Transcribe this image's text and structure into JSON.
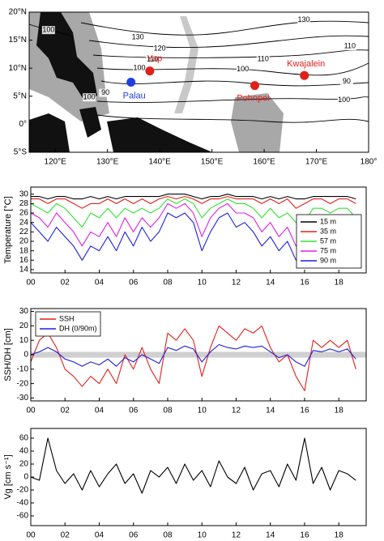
{
  "chart_data": [
    {
      "type": "map",
      "xlim": [
        115,
        180
      ],
      "ylim": [
        -5,
        20
      ],
      "xticks": [
        {
          "value": 120,
          "label": "120°E"
        },
        {
          "value": 130,
          "label": "130°E"
        },
        {
          "value": 140,
          "label": "140°E"
        },
        {
          "value": 150,
          "label": "150°E"
        },
        {
          "value": 160,
          "label": "160°E"
        },
        {
          "value": 170,
          "label": "170°E"
        },
        {
          "value": 180,
          "label": "180°"
        }
      ],
      "yticks": [
        {
          "value": -5,
          "label": "5°S"
        },
        {
          "value": 0,
          "label": "0°"
        },
        {
          "value": 5,
          "label": "5°N"
        },
        {
          "value": 10,
          "label": "10°N"
        },
        {
          "value": 15,
          "label": "15°N"
        },
        {
          "value": 20,
          "label": "20°N"
        }
      ],
      "points": [
        {
          "name": "Palau",
          "lon": 134.5,
          "lat": 7.5,
          "color": "#1f3fe0"
        },
        {
          "name": "Yap",
          "lon": 138.1,
          "lat": 9.5,
          "color": "#e0201b"
        },
        {
          "name": "Pohnpei",
          "lon": 158.2,
          "lat": 6.9,
          "color": "#e0201b"
        },
        {
          "name": "Kwajalein",
          "lon": 167.7,
          "lat": 8.7,
          "color": "#e0201b"
        }
      ],
      "contour_labels": [
        {
          "text": "130",
          "lon": 167.6,
          "lat": 18.6
        },
        {
          "text": "100",
          "lon": 118.7,
          "lat": 16.8
        },
        {
          "text": "130",
          "lon": 135.8,
          "lat": 15.5
        },
        {
          "text": "120",
          "lon": 140,
          "lat": 13.5
        },
        {
          "text": "110",
          "lon": 138.6,
          "lat": 11.5
        },
        {
          "text": "100",
          "lon": 136.1,
          "lat": 10
        },
        {
          "text": "110",
          "lon": 176.4,
          "lat": 13.9
        },
        {
          "text": "110",
          "lon": 159.8,
          "lat": 11.6
        },
        {
          "text": "100",
          "lon": 155.9,
          "lat": 9.8
        },
        {
          "text": "90",
          "lon": 175.8,
          "lat": 7.6
        },
        {
          "text": "100",
          "lon": 175.3,
          "lat": 4.3
        },
        {
          "text": "100",
          "lon": 126.5,
          "lat": 4.8
        },
        {
          "text": "90",
          "lon": 129.6,
          "lat": 5.6
        }
      ]
    },
    {
      "type": "line",
      "ylabel": "Temperature [°C]",
      "x": [
        0,
        0.5,
        1,
        1.5,
        2,
        2.5,
        3,
        3.5,
        4,
        4.5,
        5,
        5.5,
        6,
        6.5,
        7,
        7.5,
        8,
        8.5,
        9,
        9.5,
        10,
        10.5,
        11,
        11.5,
        12,
        12.5,
        13,
        13.5,
        14,
        14.5,
        15,
        15.5,
        16,
        16.5,
        17,
        17.5,
        18,
        18.5,
        19
      ],
      "xlim": [
        0,
        19.6
      ],
      "xticks": [
        {
          "value": 0,
          "label": "00"
        },
        {
          "value": 2,
          "label": "02"
        },
        {
          "value": 4,
          "label": "04"
        },
        {
          "value": 6,
          "label": "06"
        },
        {
          "value": 8,
          "label": "08"
        },
        {
          "value": 10,
          "label": "10"
        },
        {
          "value": 12,
          "label": "12"
        },
        {
          "value": 14,
          "label": "14"
        },
        {
          "value": 16,
          "label": "16"
        },
        {
          "value": 18,
          "label": "18"
        }
      ],
      "ylim": [
        13.3,
        31.5
      ],
      "yticks": [
        14,
        16,
        18,
        20,
        22,
        24,
        26,
        28,
        30
      ],
      "legend": "lower right",
      "series": [
        {
          "name": "15 m",
          "color": "#000000",
          "values": [
            29.5,
            29.5,
            29,
            29.5,
            29.5,
            29,
            29,
            29.5,
            29,
            29.5,
            29,
            29.5,
            29.5,
            29.5,
            29.5,
            29.5,
            30,
            30,
            30,
            29.5,
            29,
            29.5,
            29.5,
            30,
            29.5,
            29.5,
            29.5,
            29,
            29.5,
            29,
            29.5,
            29,
            29,
            29.5,
            29.5,
            29.5,
            29.5,
            29.5,
            29
          ]
        },
        {
          "name": "35 m",
          "color": "#e0201b",
          "values": [
            29,
            29,
            28,
            29,
            29,
            28,
            27,
            28,
            28,
            29,
            28,
            29,
            28,
            29,
            28,
            29,
            29.5,
            29,
            29.5,
            29,
            28,
            29,
            29,
            29.5,
            29,
            29,
            29,
            28,
            29,
            28,
            29,
            27,
            28,
            29,
            29,
            28,
            29,
            29,
            28
          ]
        },
        {
          "name": "57 m",
          "color": "#33e033",
          "values": [
            28,
            27,
            26,
            28,
            27,
            25,
            23,
            26,
            25,
            27,
            25,
            27,
            26,
            27,
            26,
            27,
            29,
            28,
            29,
            28,
            25,
            27,
            28,
            29,
            28,
            28,
            27,
            25,
            27,
            25,
            26,
            24,
            24,
            27,
            27,
            26,
            27,
            27,
            25
          ]
        },
        {
          "name": "75 m",
          "color": "#e020e0",
          "values": [
            26,
            25,
            23,
            26,
            24,
            22,
            19,
            22,
            21,
            24,
            21,
            25,
            22,
            25,
            23,
            25,
            28,
            27,
            28,
            26,
            21,
            25,
            27,
            28,
            26,
            26,
            25,
            22,
            24,
            21,
            23,
            19,
            20,
            24,
            25,
            23,
            25,
            24,
            20
          ]
        },
        {
          "name": "90 m",
          "color": "#1f1fe0",
          "values": [
            24,
            22,
            20,
            23,
            21,
            19,
            16,
            19,
            18,
            21,
            18,
            22,
            19,
            23,
            20,
            22,
            26,
            25,
            26,
            24,
            18,
            22,
            25,
            26,
            23,
            24,
            22,
            19,
            21,
            18,
            20,
            16,
            17,
            21,
            22,
            20,
            22,
            21,
            17
          ]
        }
      ]
    },
    {
      "type": "line",
      "ylabel": "SSH/DH [cm]",
      "x": [
        0,
        0.5,
        1,
        1.5,
        2,
        2.5,
        3,
        3.5,
        4,
        4.5,
        5,
        5.5,
        6,
        6.5,
        7,
        7.5,
        8,
        8.5,
        9,
        9.5,
        10,
        10.5,
        11,
        11.5,
        12,
        12.5,
        13,
        13.5,
        14,
        14.5,
        15,
        15.5,
        16,
        16.5,
        17,
        17.5,
        18,
        18.5,
        19
      ],
      "xlim": [
        0,
        19.6
      ],
      "xticks": [
        {
          "value": 0,
          "label": "00"
        },
        {
          "value": 2,
          "label": "02"
        },
        {
          "value": 4,
          "label": "04"
        },
        {
          "value": 6,
          "label": "06"
        },
        {
          "value": 8,
          "label": "08"
        },
        {
          "value": 10,
          "label": "10"
        },
        {
          "value": 12,
          "label": "12"
        },
        {
          "value": 14,
          "label": "14"
        },
        {
          "value": 16,
          "label": "16"
        },
        {
          "value": 18,
          "label": "18"
        }
      ],
      "ylim": [
        -32,
        32
      ],
      "yticks": [
        -30,
        -20,
        -10,
        0,
        10,
        20,
        30
      ],
      "shade": [
        -2,
        2
      ],
      "legend": "upper left",
      "series": [
        {
          "name": "SSH",
          "color": "#e0201b",
          "values": [
            -5,
            10,
            15,
            5,
            -10,
            -15,
            -22,
            -15,
            -20,
            -10,
            -20,
            0,
            -10,
            5,
            -10,
            -20,
            15,
            10,
            18,
            10,
            -15,
            5,
            20,
            15,
            10,
            18,
            15,
            20,
            5,
            -5,
            0,
            -15,
            -25,
            10,
            5,
            10,
            5,
            10,
            -10
          ]
        },
        {
          "name": "DH (0/90m)",
          "color": "#1f1fe0",
          "values": [
            0,
            2,
            5,
            2,
            -3,
            -5,
            -8,
            -5,
            -7,
            -3,
            -8,
            -2,
            -5,
            0,
            -3,
            -6,
            5,
            3,
            6,
            4,
            -5,
            2,
            7,
            5,
            4,
            6,
            5,
            6,
            2,
            -2,
            0,
            -5,
            -8,
            3,
            2,
            4,
            2,
            4,
            -3
          ]
        }
      ]
    },
    {
      "type": "line",
      "ylabel": "Vg [cm s⁻¹]",
      "x": [
        0,
        0.5,
        1,
        1.5,
        2,
        2.5,
        3,
        3.5,
        4,
        4.5,
        5,
        5.5,
        6,
        6.5,
        7,
        7.5,
        8,
        8.5,
        9,
        9.5,
        10,
        10.5,
        11,
        11.5,
        12,
        12.5,
        13,
        13.5,
        14,
        14.5,
        15,
        15.5,
        16,
        16.5,
        17,
        17.5,
        18,
        18.5,
        19
      ],
      "xlim": [
        0,
        19.6
      ],
      "xticks": [
        {
          "value": 0,
          "label": "00"
        },
        {
          "value": 2,
          "label": "02"
        },
        {
          "value": 4,
          "label": "04"
        },
        {
          "value": 6,
          "label": "06"
        },
        {
          "value": 8,
          "label": "08"
        },
        {
          "value": 10,
          "label": "10"
        },
        {
          "value": 12,
          "label": "12"
        },
        {
          "value": 14,
          "label": "14"
        },
        {
          "value": 16,
          "label": "16"
        },
        {
          "value": 18,
          "label": "18"
        }
      ],
      "ylim": [
        -75,
        75
      ],
      "yticks": [
        -60,
        -40,
        -20,
        0,
        20,
        40,
        60
      ],
      "series": [
        {
          "color": "#000000",
          "values": [
            0,
            -5,
            60,
            10,
            -10,
            5,
            -20,
            10,
            -15,
            5,
            20,
            -10,
            5,
            -25,
            10,
            0,
            15,
            -10,
            20,
            -5,
            10,
            -15,
            25,
            0,
            -10,
            15,
            -20,
            5,
            10,
            -15,
            20,
            -5,
            60,
            -10,
            15,
            -20,
            10,
            5,
            -5
          ]
        }
      ]
    }
  ]
}
